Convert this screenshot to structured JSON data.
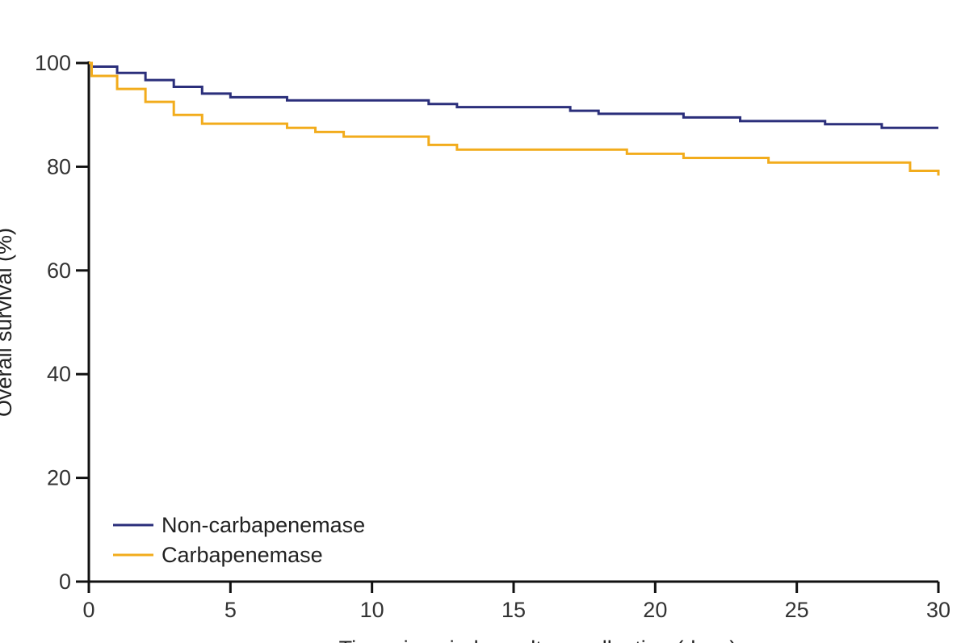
{
  "chart_data": {
    "type": "line",
    "title": "",
    "xlabel": "Time since index culture collection (days)",
    "ylabel": "Overall survival (%)",
    "xlim": [
      0,
      30
    ],
    "ylim": [
      0,
      100
    ],
    "x_ticks": [
      0,
      5,
      10,
      15,
      20,
      25,
      30
    ],
    "y_ticks": [
      0,
      20,
      40,
      60,
      80,
      100
    ],
    "grid": false,
    "legend_position": "bottom-left",
    "step": true,
    "series": [
      {
        "name": "Non-carbapenemase",
        "color": "#2b2f7b",
        "x": [
          0,
          0.1,
          1,
          2,
          3,
          4,
          5,
          7,
          12,
          13,
          17,
          18,
          21,
          23,
          26,
          28,
          30
        ],
        "y": [
          100,
          99.3,
          98.1,
          96.7,
          95.4,
          94.1,
          93.4,
          92.8,
          92.1,
          91.5,
          90.8,
          90.2,
          89.5,
          88.8,
          88.2,
          87.5,
          87.5
        ]
      },
      {
        "name": "Carbapenemase",
        "color": "#f2ac1c",
        "x": [
          0,
          0.1,
          1,
          2,
          3,
          4,
          7,
          8,
          9,
          12,
          13,
          19,
          21,
          24,
          29,
          30
        ],
        "y": [
          100,
          97.5,
          95,
          92.5,
          90,
          88.3,
          87.5,
          86.7,
          85.8,
          84.2,
          83.3,
          82.5,
          81.7,
          80.8,
          79.2,
          78.3
        ]
      }
    ]
  }
}
